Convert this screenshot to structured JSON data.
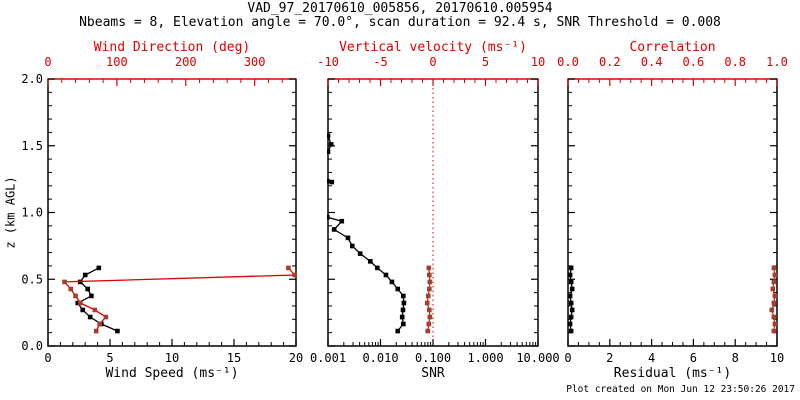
{
  "title": "VAD_97_20170610_005856, 20170610.005954",
  "subtitle": "Nbeams = 8, Elevation angle = 70.0°, scan duration = 92.4 s, SNR Threshold = 0.008",
  "footer": "Plot created on Mon Jun 12 23:50:26 2017",
  "chart_data": {
    "type": "line",
    "layout": "three vertical profile panels sharing one height axis",
    "colors": {
      "axis_red": "#dd0000",
      "marker_red": "#a83d2c",
      "black": "#000000"
    },
    "y_axis": {
      "label": "z (km AGL)",
      "min": 0.0,
      "max": 2.0,
      "major_ticks": [
        0.0,
        0.5,
        1.0,
        1.5,
        2.0
      ],
      "tick_labels": [
        "0.0",
        "0.5",
        "1.0",
        "1.5",
        "2.0"
      ],
      "minor_step": 0.1
    },
    "panels": [
      {
        "name": "wind-panel",
        "bottom_axis": {
          "label": "Wind Speed (ms⁻¹)",
          "min": 0,
          "max": 20,
          "major_ticks": [
            0,
            5,
            10,
            15,
            20
          ],
          "tick_labels": [
            "0",
            "5",
            "10",
            "15",
            "20"
          ],
          "minor_step": 1
        },
        "top_axis": {
          "label": "Wind Direction (deg)",
          "min": 0,
          "max": 360,
          "major_ticks": [
            0,
            100,
            200,
            300
          ],
          "tick_labels": [
            "0",
            "100",
            "200",
            "300"
          ],
          "minor_step": 20
        },
        "series": [
          {
            "name": "wind_speed",
            "axis": "bottom",
            "line_color": "black",
            "marker_color": "black",
            "points": {
              "z": [
                0.112,
                0.165,
                0.217,
                0.27,
                0.322,
                0.375,
                0.427,
                0.48,
                0.532,
                0.585
              ],
              "x": [
                5.6,
                4.3,
                3.4,
                2.8,
                2.4,
                3.5,
                3.2,
                2.6,
                3.0,
                4.1
              ]
            }
          },
          {
            "name": "wind_direction",
            "axis": "top",
            "line_color": "bright_red",
            "marker_color": "brick",
            "points": {
              "z": [
                0.112,
                0.165,
                0.217,
                0.27,
                0.322,
                0.375,
                0.427,
                0.48,
                0.532,
                0.585
              ],
              "x": [
                70,
                75,
                84,
                68,
                47,
                40,
                33,
                24,
                358,
                349
              ]
            }
          }
        ]
      },
      {
        "name": "snr-panel",
        "bottom_axis": {
          "label": "SNR",
          "scale": "log",
          "min": 0.001,
          "max": 10,
          "major_ticks": [
            0.001,
            0.01,
            0.1,
            1,
            10
          ],
          "tick_labels": [
            "0.001",
            "0.010",
            "0.100",
            "1.000",
            "10.000"
          ]
        },
        "top_axis": {
          "label": "Vertical velocity (ms⁻¹)",
          "min": -10,
          "max": 10,
          "major_ticks": [
            -10,
            -5,
            0,
            5,
            10
          ],
          "tick_labels": [
            "-10",
            "-5",
            "0",
            "5",
            "10"
          ],
          "minor_step": 1
        },
        "ref_line": {
          "axis": "top",
          "value": 0,
          "style": "dotted",
          "color": "bright_red"
        },
        "series": [
          {
            "name": "snr_profile",
            "axis": "bottom",
            "line_color": "black",
            "marker_color": "black",
            "segments": [
              {
                "z": [
                  1.575,
                  1.51,
                  1.455
                ],
                "x": [
                  0.001,
                  0.00115,
                  0.001
                ]
              },
              {
                "z": [
                  1.235,
                  1.228
                ],
                "x": [
                  0.00097,
                  0.00118
                ]
              },
              {
                "z": [
                  0.965,
                  0.935,
                  0.873,
                  0.81,
                  0.749,
                  0.692,
                  0.634,
                  0.585,
                  0.532,
                  0.48,
                  0.427,
                  0.375,
                  0.322,
                  0.27,
                  0.217,
                  0.165,
                  0.112
                ],
                "x": [
                  0.00097,
                  0.00183,
                  0.00131,
                  0.0024,
                  0.0029,
                  0.0041,
                  0.0064,
                  0.0087,
                  0.0127,
                  0.0165,
                  0.0213,
                  0.0272,
                  0.0279,
                  0.0268,
                  0.0259,
                  0.0272,
                  0.0213
                ]
              }
            ]
          },
          {
            "name": "vertical_velocity",
            "axis": "top",
            "line_color": "brick",
            "marker_color": "brick",
            "points": {
              "z": [
                0.112,
                0.165,
                0.217,
                0.27,
                0.322,
                0.375,
                0.427,
                0.48,
                0.532,
                0.585
              ],
              "x": [
                -0.5,
                -0.4,
                -0.3,
                -0.35,
                -0.55,
                -0.45,
                -0.35,
                -0.3,
                -0.35,
                -0.4
              ]
            }
          }
        ]
      },
      {
        "name": "residual-panel",
        "bottom_axis": {
          "label": "Residual (ms⁻¹)",
          "min": 0,
          "max": 10,
          "major_ticks": [
            0,
            2,
            4,
            6,
            8,
            10
          ],
          "tick_labels": [
            "0",
            "2",
            "4",
            "6",
            "8",
            "10"
          ],
          "minor_step": 0.5
        },
        "top_axis": {
          "label": "Correlation",
          "min": 0,
          "max": 1,
          "major_ticks": [
            0,
            0.2,
            0.4,
            0.6,
            0.8,
            1.0
          ],
          "tick_labels": [
            "0.0",
            "0.2",
            "0.4",
            "0.6",
            "0.8",
            "1.0"
          ],
          "minor_step": 0.05
        },
        "series": [
          {
            "name": "residual",
            "axis": "bottom",
            "line_color": "black",
            "marker_color": "black",
            "points": {
              "z": [
                0.112,
                0.165,
                0.217,
                0.27,
                0.322,
                0.375,
                0.427,
                0.48,
                0.532,
                0.585
              ],
              "x": [
                0.15,
                0.1,
                0.15,
                0.2,
                0.15,
                0.1,
                0.2,
                0.15,
                0.1,
                0.15
              ]
            }
          },
          {
            "name": "correlation",
            "axis": "top",
            "line_color": "brick",
            "marker_color": "brick",
            "points": {
              "z": [
                0.112,
                0.165,
                0.217,
                0.27,
                0.322,
                0.375,
                0.427,
                0.48,
                0.532,
                0.585
              ],
              "x": [
                0.985,
                0.99,
                0.985,
                0.975,
                0.985,
                0.99,
                0.98,
                0.985,
                0.99,
                0.985
              ]
            }
          }
        ]
      }
    ]
  }
}
